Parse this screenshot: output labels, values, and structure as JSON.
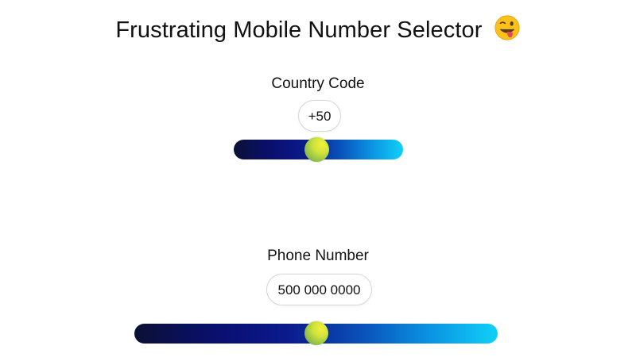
{
  "header": {
    "title": "Frustrating Mobile Number Selector",
    "emoji_icon": "winking-face-with-tongue-icon"
  },
  "country_code": {
    "label": "Country Code",
    "value": "+50",
    "slider_fraction": 0.49
  },
  "phone_number": {
    "label": "Phone Number",
    "value": "500 000 0000",
    "slider_fraction": 0.5
  },
  "colors": {
    "slider_start": "#0b1035",
    "slider_end": "#10d0f8",
    "thumb_yellow": "#f4f03a",
    "thumb_green": "#5c9f52"
  }
}
